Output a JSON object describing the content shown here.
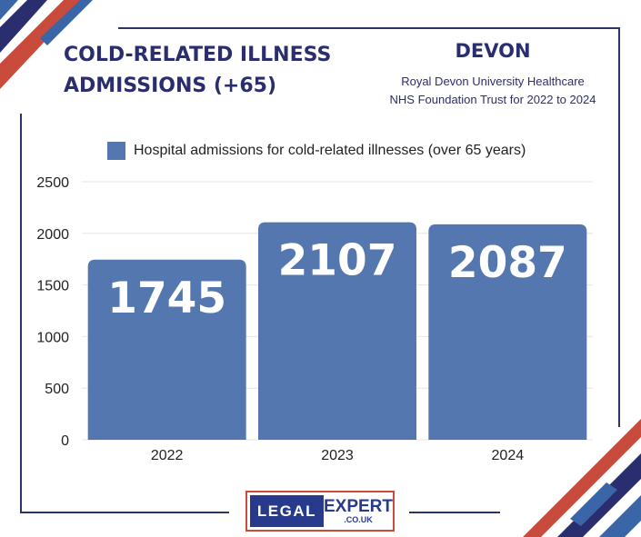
{
  "header": {
    "title": "COLD-RELATED ILLNESS ADMISSIONS (+65)",
    "region": "DEVON",
    "subtitle_line1": "Royal Devon University Healthcare",
    "subtitle_line2": "NHS Foundation Trust for 2022 to 2024"
  },
  "logo": {
    "left": "LEGAL",
    "right": "EXPERT",
    "sub": ".CO.UK"
  },
  "colors": {
    "bar": "#5577b0",
    "navy": "#2a2d6e",
    "red": "#c84b3c",
    "blue": "#3a66a8"
  },
  "chart_data": {
    "type": "bar",
    "title": "",
    "categories": [
      "2022",
      "2023",
      "2024"
    ],
    "series": [
      {
        "name": "Hospital admissions for cold-related illnesses (over 65 years)",
        "values": [
          1745,
          2107,
          2087
        ]
      }
    ],
    "ylim": [
      0,
      2500
    ],
    "yticks": [
      0,
      500,
      1000,
      1500,
      2000,
      2500
    ],
    "xlabel": "",
    "ylabel": "",
    "grid": true,
    "legend": "top"
  }
}
